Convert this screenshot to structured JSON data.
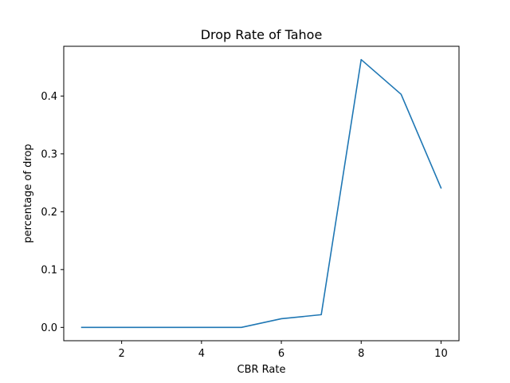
{
  "chart_data": {
    "type": "line",
    "title": "Drop Rate of Tahoe",
    "xlabel": "CBR Rate",
    "ylabel": "percentage of drop",
    "xlim": [
      0.55,
      10.45
    ],
    "ylim": [
      -0.023,
      0.486
    ],
    "xticks": [
      2,
      4,
      6,
      8,
      10
    ],
    "yticks": [
      0.0,
      0.1,
      0.2,
      0.3,
      0.4
    ],
    "grid": false,
    "series": [
      {
        "color": "#1f77b4",
        "x": [
          1,
          2,
          3,
          4,
          5,
          6,
          7,
          8,
          9,
          10
        ],
        "y": [
          0.0,
          0.0,
          0.0,
          0.0,
          0.0,
          0.015,
          0.022,
          0.463,
          0.403,
          0.241
        ]
      }
    ]
  }
}
